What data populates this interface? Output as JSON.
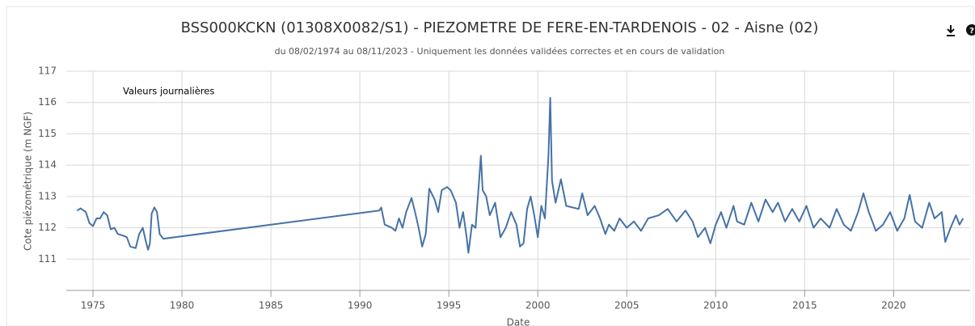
{
  "chart_data": {
    "type": "line",
    "title": "BSS000KCKN (01308X0082/S1) - PIEZOMETRE DE FERE-EN-TARDENOIS - 02 - Aisne (02)",
    "subtitle": "du 08/02/1974 au 08/11/2023 - Uniquement les données validées correctes et en cours de validation",
    "annotation": "Valeurs journalières",
    "xlabel": "Date",
    "ylabel": "Cote piézométrique (m NGF)",
    "xlim": [
      1973.5,
      2024.3
    ],
    "xticks": [
      1975,
      1980,
      1985,
      1990,
      1995,
      2000,
      2005,
      2010,
      2015,
      2020
    ],
    "ylim": [
      110,
      117
    ],
    "yticks": [
      111,
      112,
      113,
      114,
      115,
      116,
      117
    ],
    "grid": true,
    "series": [
      {
        "color": "#4572a7",
        "x": [
          1974.1,
          1974.3,
          1974.6,
          1974.8,
          1975.0,
          1975.2,
          1975.4,
          1975.6,
          1975.8,
          1976.0,
          1976.2,
          1976.4,
          1976.7,
          1976.9,
          1977.1,
          1977.4,
          1977.6,
          1977.8,
          1978.0,
          1978.1,
          1978.2,
          1978.3,
          1978.45,
          1978.6,
          1978.75,
          1978.95,
          1991.1,
          1991.2,
          1991.4,
          1991.8,
          1992.0,
          1992.2,
          1992.4,
          1992.6,
          1992.9,
          1993.1,
          1993.3,
          1993.5,
          1993.7,
          1993.9,
          1994.2,
          1994.4,
          1994.6,
          1994.9,
          1995.1,
          1995.4,
          1995.6,
          1995.8,
          1996.0,
          1996.1,
          1996.3,
          1996.5,
          1996.7,
          1996.8,
          1996.9,
          1997.1,
          1997.3,
          1997.6,
          1997.9,
          1998.2,
          1998.5,
          1998.8,
          1999.0,
          1999.2,
          1999.4,
          1999.6,
          1999.8,
          2000.0,
          2000.2,
          2000.4,
          2000.6,
          2000.7,
          2000.8,
          2001.0,
          2001.3,
          2001.6,
          2002.3,
          2002.5,
          2002.8,
          2003.2,
          2003.5,
          2003.8,
          2004.0,
          2004.3,
          2004.6,
          2005.0,
          2005.4,
          2005.8,
          2006.2,
          2006.8,
          2007.3,
          2007.8,
          2008.3,
          2008.7,
          2009.0,
          2009.4,
          2009.7,
          2010.0,
          2010.3,
          2010.6,
          2011.0,
          2011.2,
          2011.6,
          2012.0,
          2012.4,
          2012.8,
          2013.2,
          2013.5,
          2013.9,
          2014.3,
          2014.7,
          2015.1,
          2015.5,
          2015.9,
          2016.4,
          2016.8,
          2017.2,
          2017.6,
          2018.0,
          2018.3,
          2018.6,
          2019.0,
          2019.4,
          2019.8,
          2020.2,
          2020.6,
          2020.9,
          2021.2,
          2021.6,
          2022.0,
          2022.3,
          2022.7,
          2022.9,
          2023.2,
          2023.5,
          2023.7,
          2023.9
        ],
        "values": [
          112.55,
          112.62,
          112.5,
          112.15,
          112.05,
          112.3,
          112.3,
          112.5,
          112.4,
          111.95,
          112.0,
          111.8,
          111.75,
          111.7,
          111.4,
          111.35,
          111.8,
          112.0,
          111.5,
          111.3,
          111.5,
          112.45,
          112.65,
          112.5,
          111.8,
          111.65,
          112.55,
          112.65,
          112.1,
          112.0,
          111.9,
          112.3,
          112.0,
          112.5,
          112.95,
          112.5,
          112.0,
          111.4,
          111.8,
          113.25,
          112.9,
          112.5,
          113.2,
          113.3,
          113.2,
          112.8,
          112.0,
          112.5,
          111.7,
          111.2,
          112.1,
          112.0,
          113.5,
          114.3,
          113.2,
          113.0,
          112.4,
          112.8,
          111.7,
          112.0,
          112.5,
          112.1,
          111.4,
          111.5,
          112.6,
          113.0,
          112.4,
          111.7,
          112.7,
          112.3,
          114.3,
          116.15,
          113.5,
          112.8,
          113.55,
          112.7,
          112.6,
          113.1,
          112.4,
          112.7,
          112.3,
          111.8,
          112.1,
          111.9,
          112.3,
          112.0,
          112.2,
          111.9,
          112.3,
          112.4,
          112.6,
          112.2,
          112.55,
          112.2,
          111.7,
          112.0,
          111.5,
          112.1,
          112.5,
          112.0,
          112.7,
          112.2,
          112.1,
          112.8,
          112.2,
          112.9,
          112.5,
          112.8,
          112.2,
          112.6,
          112.2,
          112.7,
          112.0,
          112.3,
          112.0,
          112.6,
          112.1,
          111.9,
          112.5,
          113.1,
          112.5,
          111.9,
          112.1,
          112.5,
          111.9,
          112.3,
          113.05,
          112.2,
          112.0,
          112.8,
          112.3,
          112.5,
          111.55,
          112.0,
          112.4,
          112.1,
          112.3
        ]
      }
    ]
  }
}
